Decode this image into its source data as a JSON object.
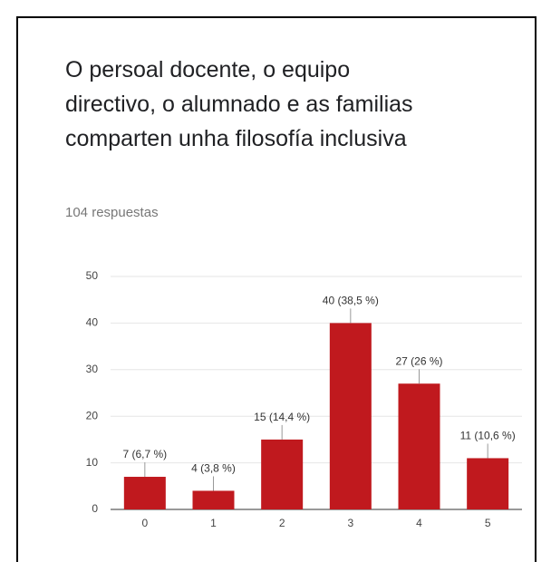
{
  "chart_data": {
    "type": "bar",
    "title": "O persoal docente, o equipo directivo, o alumnado e as familias comparten unha filosofía inclusiva",
    "subtitle": "104 respuestas",
    "categories": [
      "0",
      "1",
      "2",
      "3",
      "4",
      "5"
    ],
    "values": [
      7,
      4,
      15,
      40,
      27,
      11
    ],
    "value_labels": [
      "7 (6,7 %)",
      "4 (3,8 %)",
      "15 (14,4 %)",
      "40 (38,5 %)",
      "27 (26 %)",
      "11 (10,6 %)"
    ],
    "color": "#c0191e",
    "ylim": [
      0,
      50
    ],
    "yticks": [
      0,
      10,
      20,
      30,
      40,
      50
    ],
    "grid": true
  }
}
